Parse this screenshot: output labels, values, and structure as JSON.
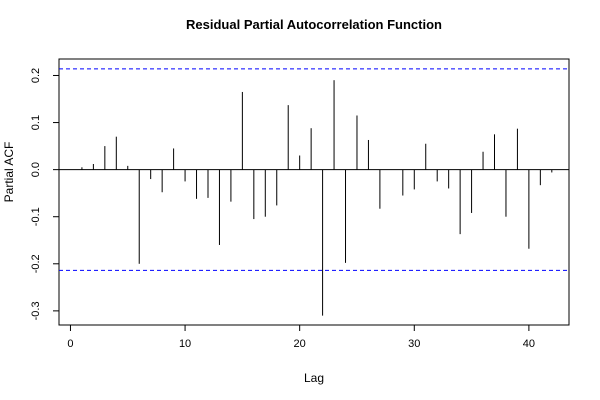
{
  "chart_data": {
    "type": "bar",
    "title": "Residual Partial Autocorrelation Function",
    "xlabel": "Lag",
    "ylabel": "Partial ACF",
    "xlim": [
      -1,
      43.5
    ],
    "ylim": [
      -0.33,
      0.235
    ],
    "xticks": [
      0,
      10,
      20,
      30,
      40
    ],
    "yticks": [
      -0.3,
      -0.2,
      -0.1,
      0.0,
      0.1,
      0.2
    ],
    "ytick_labels": [
      "-0.3",
      "-0.2",
      "-0.1",
      "0.0",
      "0.1",
      "0.2"
    ],
    "confidence_bound": 0.214,
    "confidence_color": "#0000ff",
    "grid": false,
    "lags": [
      1,
      2,
      3,
      4,
      5,
      6,
      7,
      8,
      9,
      10,
      11,
      12,
      13,
      14,
      15,
      16,
      17,
      18,
      19,
      20,
      21,
      22,
      23,
      24,
      25,
      26,
      27,
      28,
      29,
      30,
      31,
      32,
      33,
      34,
      35,
      36,
      37,
      38,
      39,
      40,
      41,
      42
    ],
    "values": [
      0.005,
      0.012,
      0.05,
      0.07,
      0.008,
      -0.2,
      -0.02,
      -0.048,
      0.045,
      -0.025,
      -0.062,
      -0.06,
      -0.16,
      -0.068,
      0.165,
      -0.105,
      -0.1,
      -0.076,
      0.137,
      0.03,
      0.088,
      -0.31,
      0.19,
      -0.198,
      0.115,
      0.063,
      -0.083,
      0.0,
      -0.055,
      -0.042,
      0.055,
      -0.025,
      -0.04,
      -0.137,
      -0.092,
      0.038,
      0.075,
      -0.1,
      0.087,
      -0.168,
      -0.033,
      -0.006
    ]
  }
}
